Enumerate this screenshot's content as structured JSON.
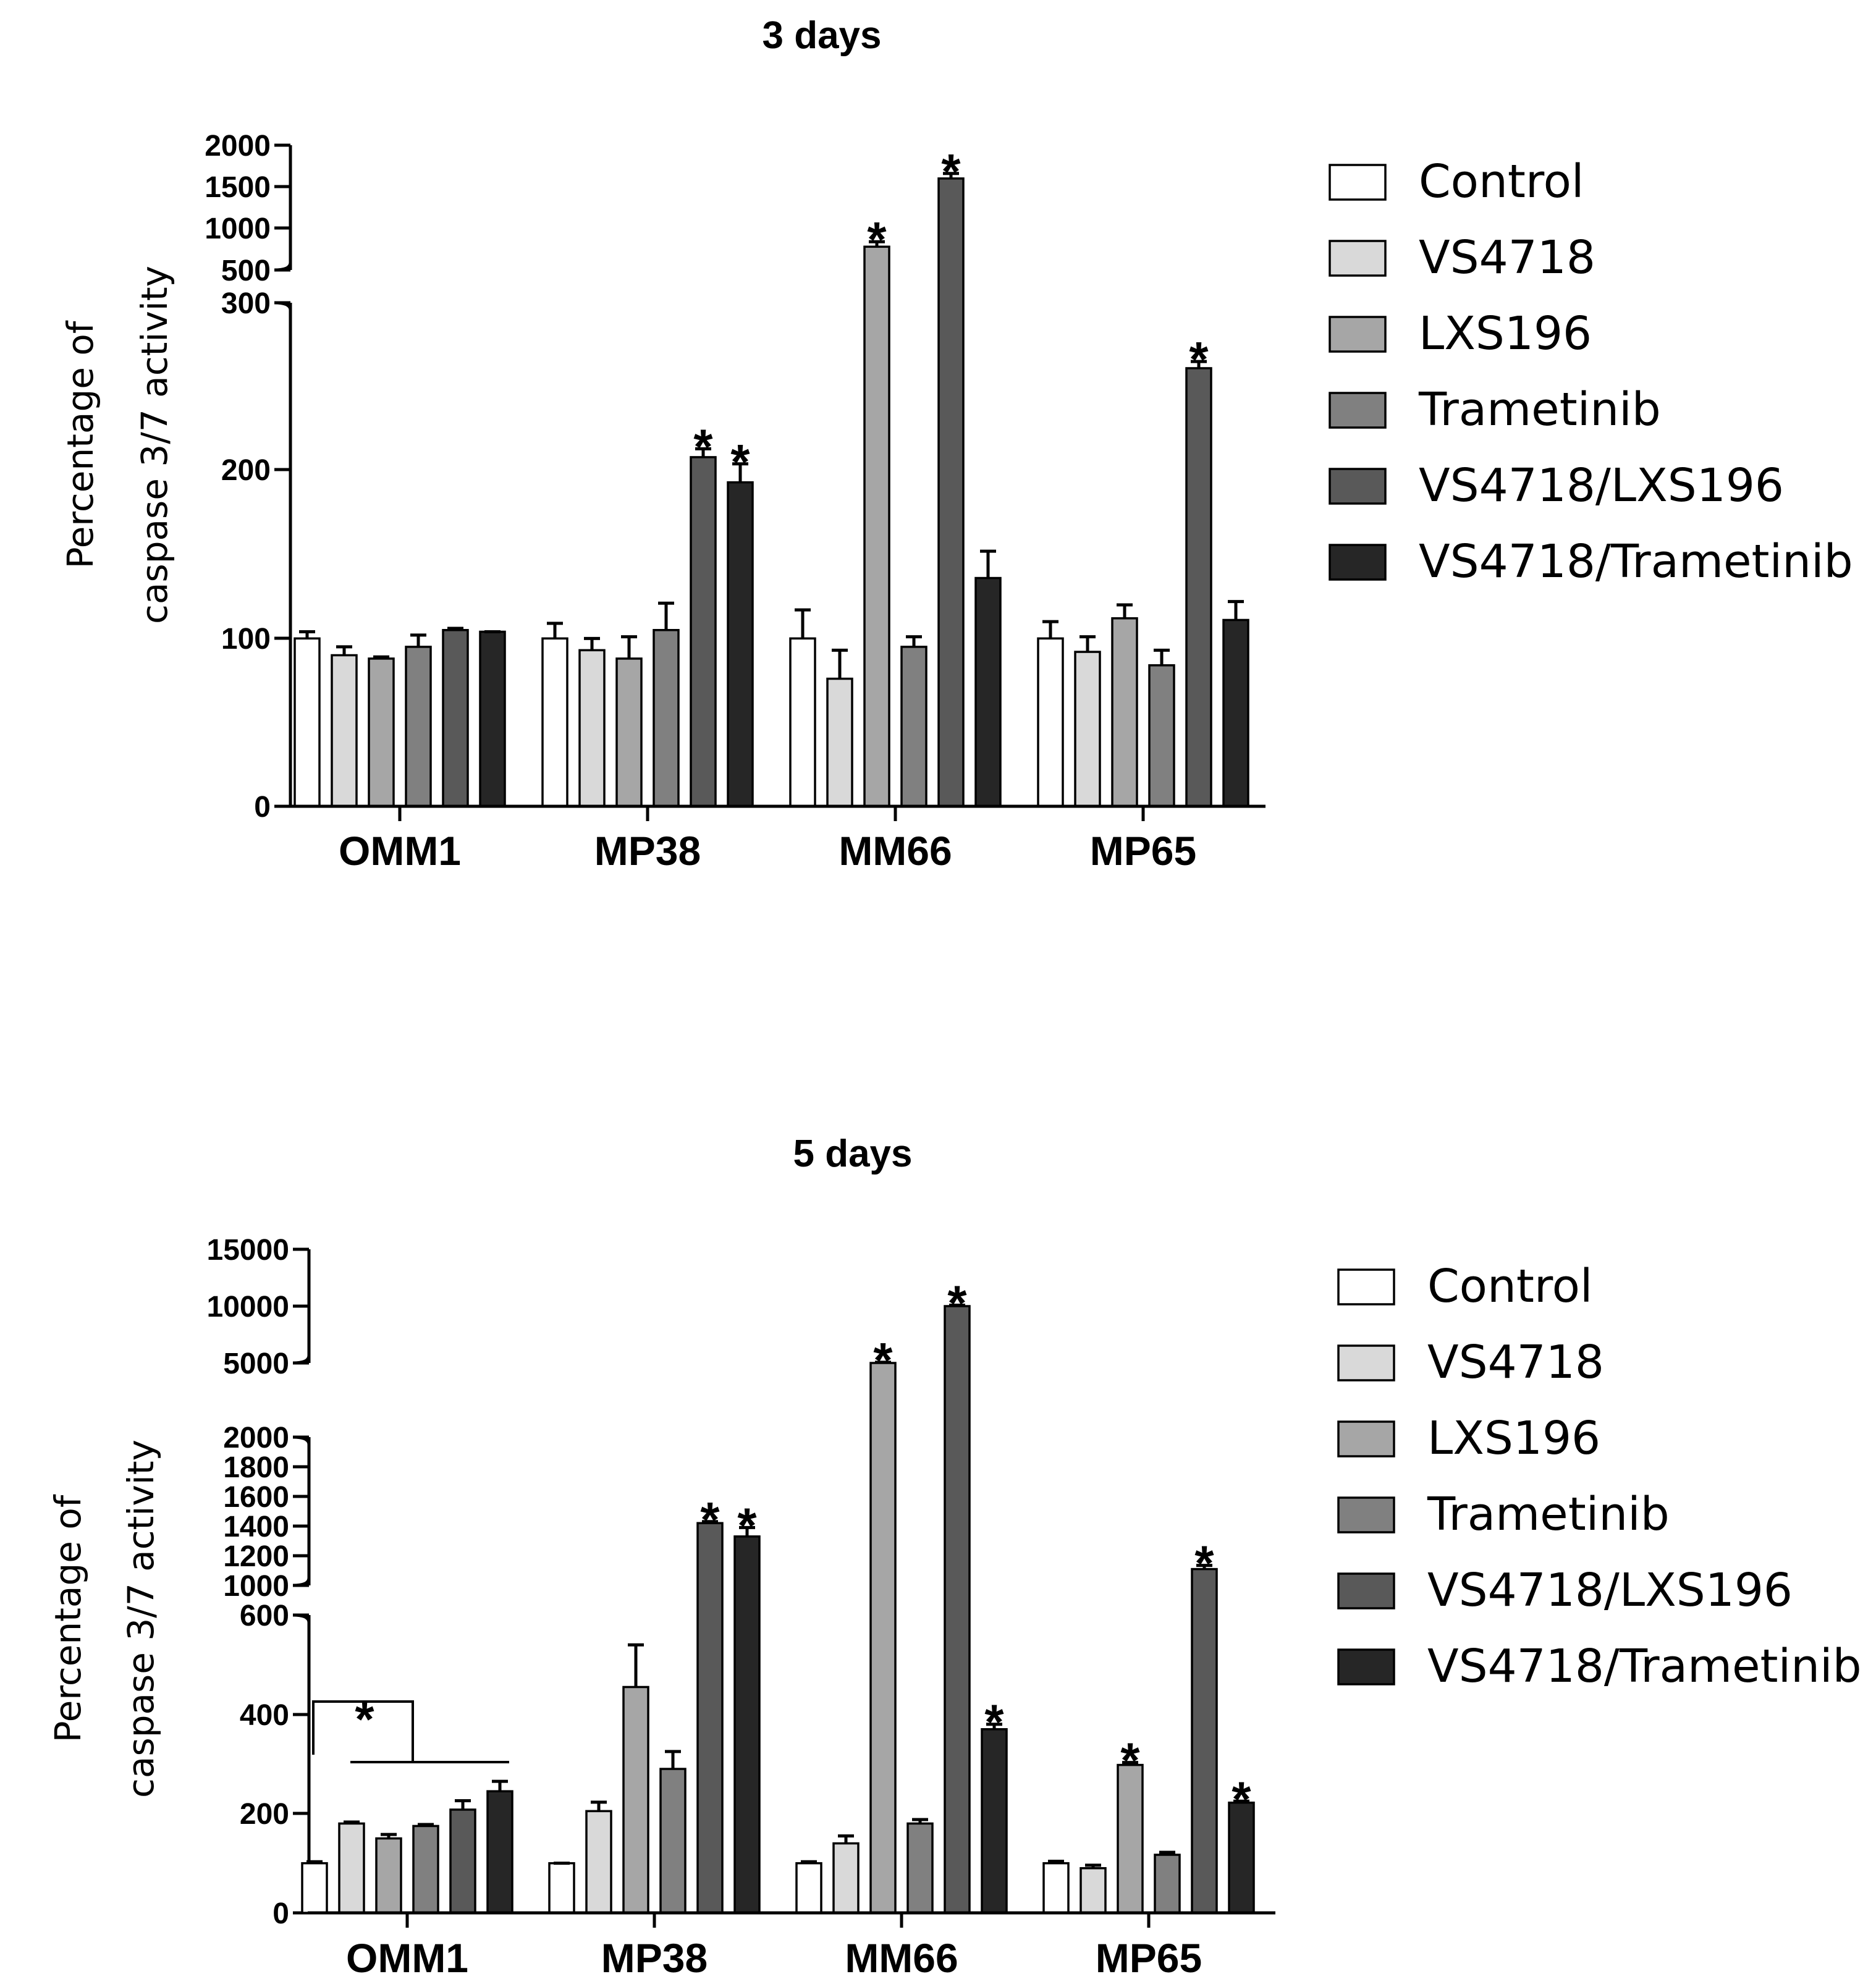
{
  "chart_data": [
    {
      "type": "bar",
      "title": "3 days",
      "ylabel_lines": [
        "Percentage of",
        "caspase 3/7 activity"
      ],
      "categories": [
        "OMM1",
        "MP38",
        "MM66",
        "MP65"
      ],
      "axis_breaks": [
        {
          "range": [
            0,
            300
          ],
          "ticks": [
            "0",
            "100",
            "200",
            "300"
          ]
        },
        {
          "range": [
            500,
            2000
          ],
          "ticks": [
            "500",
            "1000",
            "1500",
            "2000"
          ]
        }
      ],
      "series": [
        {
          "name": "Control",
          "color": "#ffffff",
          "values": [
            100,
            100,
            100,
            100
          ],
          "errors": [
            4,
            9,
            17,
            10
          ],
          "significant": [
            false,
            false,
            false,
            false
          ]
        },
        {
          "name": "VS4718",
          "color": "#d9d9d9",
          "values": [
            90,
            93,
            76,
            92
          ],
          "errors": [
            5,
            7,
            17,
            9
          ],
          "significant": [
            false,
            false,
            false,
            false
          ]
        },
        {
          "name": "LXS196",
          "color": "#a6a6a6",
          "values": [
            88,
            88,
            780,
            112
          ],
          "errors": [
            1,
            13,
            60,
            8
          ],
          "significant": [
            false,
            false,
            true,
            false
          ]
        },
        {
          "name": "Trametinib",
          "color": "#808080",
          "values": [
            95,
            105,
            95,
            84
          ],
          "errors": [
            7,
            16,
            6,
            9
          ],
          "significant": [
            false,
            false,
            false,
            false
          ]
        },
        {
          "name": "VS4718/LXS196",
          "color": "#595959",
          "values": [
            105,
            208,
            1600,
            261
          ],
          "errors": [
            1,
            5,
            60,
            4
          ],
          "significant": [
            false,
            true,
            true,
            true
          ]
        },
        {
          "name": "VS4718/Trametinib",
          "color": "#262626",
          "values": [
            104,
            193,
            136,
            111
          ],
          "errors": [
            0,
            11,
            16,
            11
          ],
          "significant": [
            false,
            true,
            false,
            false
          ]
        }
      ],
      "annotations": {
        "star": "*"
      }
    },
    {
      "type": "bar",
      "title": "5 days",
      "ylabel_lines": [
        "Percentage of",
        "caspase 3/7 activity"
      ],
      "categories": [
        "OMM1",
        "MP38",
        "MM66",
        "MP65"
      ],
      "axis_breaks": [
        {
          "range": [
            0,
            600
          ],
          "ticks": [
            "0",
            "200",
            "400",
            "600"
          ]
        },
        {
          "range": [
            1000,
            2000
          ],
          "ticks": [
            "1000",
            "1200",
            "1400",
            "1600",
            "1800",
            "2000"
          ]
        },
        {
          "range": [
            5000,
            15000
          ],
          "ticks": [
            "5000",
            "10000",
            "15000"
          ]
        }
      ],
      "series": [
        {
          "name": "Control",
          "color": "#ffffff",
          "values": [
            100,
            100,
            100,
            100
          ],
          "errors": [
            3,
            0,
            3,
            4
          ],
          "significant": [
            false,
            false,
            false,
            false
          ]
        },
        {
          "name": "VS4718",
          "color": "#d9d9d9",
          "values": [
            180,
            205,
            140,
            90
          ],
          "errors": [
            3,
            18,
            15,
            6
          ],
          "significant": [
            false,
            false,
            false,
            false
          ]
        },
        {
          "name": "LXS196",
          "color": "#a6a6a6",
          "values": [
            150,
            455,
            5000,
            298
          ],
          "errors": [
            8,
            85,
            60,
            5
          ],
          "significant": [
            false,
            false,
            true,
            true
          ]
        },
        {
          "name": "Trametinib",
          "color": "#808080",
          "values": [
            175,
            290,
            180,
            117
          ],
          "errors": [
            3,
            35,
            8,
            5
          ],
          "significant": [
            false,
            false,
            false,
            false
          ]
        },
        {
          "name": "VS4718/LXS196",
          "color": "#595959",
          "values": [
            208,
            1420,
            10000,
            1110
          ],
          "errors": [
            18,
            10,
            80,
            25
          ],
          "significant": [
            false,
            true,
            true,
            true
          ]
        },
        {
          "name": "VS4718/Trametinib",
          "color": "#262626",
          "values": [
            245,
            1330,
            370,
            222
          ],
          "errors": [
            20,
            60,
            10,
            3
          ],
          "significant": [
            false,
            true,
            true,
            true
          ]
        }
      ],
      "annotations": {
        "star": "*",
        "bracket_star": "*"
      }
    }
  ]
}
